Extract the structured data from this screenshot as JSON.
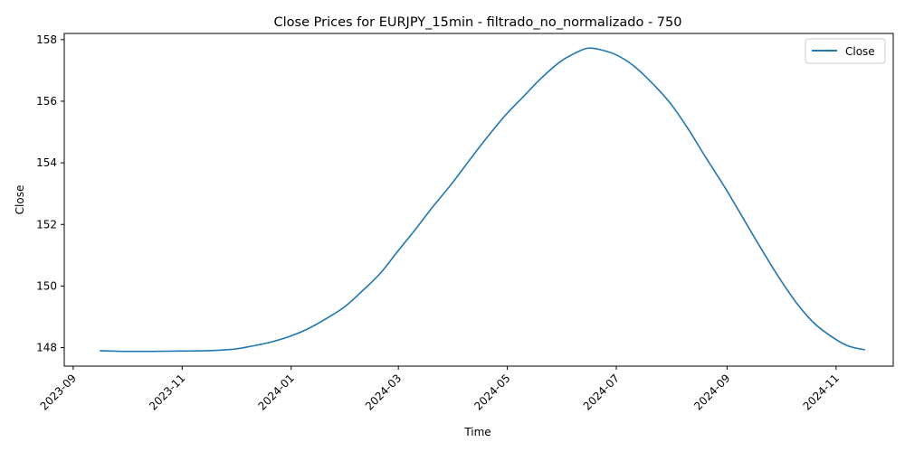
{
  "chart_data": {
    "type": "line",
    "title": "Close Prices for EURJPY_15min - filtrado_no_normalizado - 750",
    "xlabel": "Time",
    "ylabel": "Close",
    "x_ticks": [
      "2023-09",
      "2023-11",
      "2024-01",
      "2024-03",
      "2024-05",
      "2024-07",
      "2024-09",
      "2024-11"
    ],
    "y_ticks": [
      "148",
      "150",
      "152",
      "154",
      "156",
      "158"
    ],
    "ylim": [
      147.4,
      158.2
    ],
    "xlim": [
      "2023-08-27",
      "2024-12-03"
    ],
    "legend": {
      "position": "top-right"
    },
    "grid": false,
    "series": [
      {
        "name": "Close",
        "color": "#1f77b4",
        "x": [
          "2023-09-16",
          "2023-09-30",
          "2023-10-15",
          "2023-10-31",
          "2023-11-15",
          "2023-11-30",
          "2023-12-10",
          "2023-12-20",
          "2023-12-31",
          "2024-01-10",
          "2024-01-20",
          "2024-01-31",
          "2024-02-10",
          "2024-02-20",
          "2024-02-29",
          "2024-03-10",
          "2024-03-20",
          "2024-03-31",
          "2024-04-10",
          "2024-04-20",
          "2024-04-30",
          "2024-05-10",
          "2024-05-20",
          "2024-05-31",
          "2024-06-10",
          "2024-06-15",
          "2024-06-20",
          "2024-06-30",
          "2024-07-10",
          "2024-07-20",
          "2024-07-31",
          "2024-08-10",
          "2024-08-20",
          "2024-08-31",
          "2024-09-10",
          "2024-09-20",
          "2024-09-30",
          "2024-10-10",
          "2024-10-20",
          "2024-10-31",
          "2024-11-08",
          "2024-11-17"
        ],
        "values": [
          147.9,
          147.88,
          147.88,
          147.89,
          147.9,
          147.95,
          148.05,
          148.17,
          148.36,
          148.6,
          148.92,
          149.33,
          149.85,
          150.42,
          151.08,
          151.8,
          152.55,
          153.33,
          154.1,
          154.85,
          155.55,
          156.15,
          156.75,
          157.3,
          157.62,
          157.72,
          157.7,
          157.53,
          157.18,
          156.65,
          155.95,
          155.12,
          154.18,
          153.18,
          152.2,
          151.22,
          150.28,
          149.44,
          148.78,
          148.3,
          148.05,
          147.93
        ]
      }
    ]
  }
}
